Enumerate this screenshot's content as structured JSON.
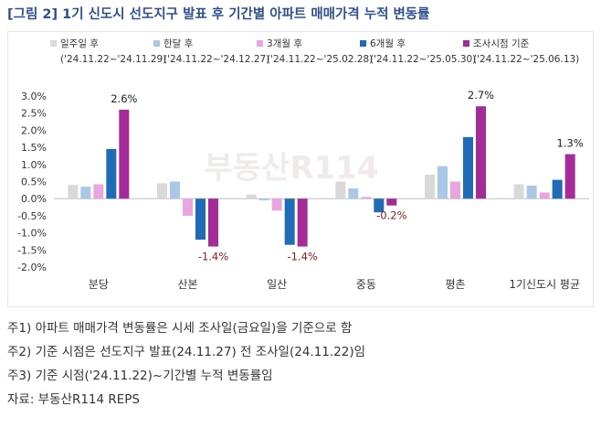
{
  "title": "[그림 2] 1기 신도시 선도지구 발표 후 기간별 아파트 매매가격 누적 변동률",
  "watermark": "부동산R114",
  "notes": [
    "주1) 아파트 매매가격 변동률은 시세 조사일(금요일)을 기준으로 함",
    "주2) 기준 시점은 선도지구 발표(24.11.27) 전 조사일(24.11.22)임",
    "주3) 기준 시점('24.11.22)~기간별 누적 변동률임",
    "자료: 부동산R114 REPS"
  ],
  "chart_data": {
    "type": "bar",
    "categories": [
      "분당",
      "산본",
      "일산",
      "중동",
      "평촌",
      "1기신도시 평균"
    ],
    "ylim": [
      -2.0,
      3.0
    ],
    "yticks": [
      "3.0%",
      "2.5%",
      "2.0%",
      "1.5%",
      "1.0%",
      "0.5%",
      "0.0%",
      "-0.5%",
      "-1.0%",
      "-1.5%",
      "-2.0%"
    ],
    "grid": false,
    "legend_position": "top",
    "series": [
      {
        "name": "일주일 후",
        "period": "('24.11.22~'24.11.29)",
        "color": "#d9d9d9",
        "values": [
          0.4,
          0.45,
          0.12,
          0.5,
          0.7,
          0.42
        ]
      },
      {
        "name": "한달 후",
        "period": "('24.11.22~'24.12.27)",
        "color": "#a9c8e8",
        "values": [
          0.35,
          0.5,
          -0.05,
          0.3,
          0.95,
          0.38
        ]
      },
      {
        "name": "3개월 후",
        "period": "('24.11.22~'25.02.28)",
        "color": "#e8a6e0",
        "values": [
          0.42,
          -0.5,
          -0.35,
          0.05,
          0.5,
          0.18
        ]
      },
      {
        "name": "6개월 후",
        "period": "('24.11.22~'25.05.30)",
        "color": "#1f6bb5",
        "values": [
          1.45,
          -1.2,
          -1.35,
          -0.4,
          1.8,
          0.55
        ]
      },
      {
        "name": "조사시점 기준",
        "period": "('24.11.22~'25.06.13)",
        "color": "#a32c98",
        "values": [
          2.6,
          -1.4,
          -1.4,
          -0.2,
          2.7,
          1.3
        ]
      }
    ],
    "data_labels": [
      {
        "category": "분당",
        "text": "2.6%"
      },
      {
        "category": "산본",
        "text": "-1.4%"
      },
      {
        "category": "일산",
        "text": "-1.4%"
      },
      {
        "category": "중동",
        "text": "-0.2%"
      },
      {
        "category": "평촌",
        "text": "2.7%"
      },
      {
        "category": "1기신도시 평균",
        "text": "1.3%"
      }
    ],
    "colors": {
      "axis": "#bfbfbf",
      "tick_text": "#333333",
      "label_positive": "#222222",
      "label_negative": "#8b1a1a"
    }
  }
}
